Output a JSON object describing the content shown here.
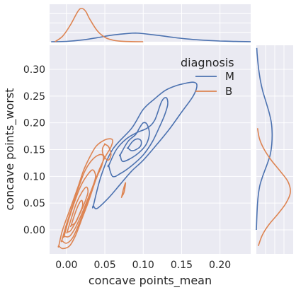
{
  "chart_data": {
    "type": "kde-jointplot",
    "xlabel": "concave points_mean",
    "ylabel": "concave points_worst",
    "xlim": [
      -0.022,
      0.24
    ],
    "ylim": [
      -0.045,
      0.345
    ],
    "x_ticks": [
      0.0,
      0.05,
      0.1,
      0.15,
      0.2
    ],
    "x_tick_labels": [
      "0.00",
      "0.05",
      "0.10",
      "0.15",
      "0.20"
    ],
    "y_ticks": [
      0.0,
      0.05,
      0.1,
      0.15,
      0.2,
      0.25,
      0.3
    ],
    "y_tick_labels": [
      "0.00",
      "0.05",
      "0.10",
      "0.15",
      "0.20",
      "0.25",
      "0.30"
    ],
    "grid": true,
    "legend": {
      "title": "diagnosis",
      "placement": "top-right",
      "entries": [
        {
          "label": "M",
          "color": "#4c72b0"
        },
        {
          "label": "B",
          "color": "#dd8452"
        }
      ]
    },
    "series": [
      {
        "name": "M",
        "color": "#4c72b0",
        "contours": [
          [
            [
              0.035,
              0.045
            ],
            [
              0.045,
              0.1
            ],
            [
              0.06,
              0.15
            ],
            [
              0.085,
              0.19
            ],
            [
              0.1,
              0.225
            ],
            [
              0.115,
              0.245
            ],
            [
              0.128,
              0.26
            ],
            [
              0.14,
              0.268
            ],
            [
              0.152,
              0.273
            ],
            [
              0.165,
              0.276
            ],
            [
              0.17,
              0.27
            ],
            [
              0.165,
              0.25
            ],
            [
              0.15,
              0.22
            ],
            [
              0.135,
              0.19
            ],
            [
              0.118,
              0.16
            ],
            [
              0.1,
              0.13
            ],
            [
              0.085,
              0.11
            ],
            [
              0.07,
              0.085
            ],
            [
              0.055,
              0.06
            ],
            [
              0.04,
              0.04
            ],
            [
              0.035,
              0.045
            ]
          ],
          [
            [
              0.055,
              0.12
            ],
            [
              0.065,
              0.15
            ],
            [
              0.078,
              0.17
            ],
            [
              0.092,
              0.182
            ],
            [
              0.105,
              0.19
            ],
            [
              0.115,
              0.205
            ],
            [
              0.124,
              0.24
            ],
            [
              0.13,
              0.247
            ],
            [
              0.132,
              0.235
            ],
            [
              0.128,
              0.215
            ],
            [
              0.122,
              0.195
            ],
            [
              0.112,
              0.165
            ],
            [
              0.1,
              0.14
            ],
            [
              0.085,
              0.12
            ],
            [
              0.07,
              0.105
            ],
            [
              0.06,
              0.1
            ],
            [
              0.055,
              0.12
            ]
          ],
          [
            [
              0.07,
              0.14
            ],
            [
              0.08,
              0.165
            ],
            [
              0.09,
              0.178
            ],
            [
              0.095,
              0.19
            ],
            [
              0.1,
              0.2
            ],
            [
              0.105,
              0.197
            ],
            [
              0.108,
              0.18
            ],
            [
              0.104,
              0.16
            ],
            [
              0.095,
              0.145
            ],
            [
              0.083,
              0.133
            ],
            [
              0.073,
              0.128
            ],
            [
              0.07,
              0.14
            ]
          ],
          [
            [
              0.08,
              0.153
            ],
            [
              0.086,
              0.165
            ],
            [
              0.092,
              0.17
            ],
            [
              0.097,
              0.167
            ],
            [
              0.097,
              0.158
            ],
            [
              0.092,
              0.151
            ],
            [
              0.085,
              0.148
            ],
            [
              0.08,
              0.153
            ]
          ]
        ]
      },
      {
        "name": "B",
        "color": "#dd8452",
        "contours": [
          [
            [
              -0.01,
              -0.03
            ],
            [
              -0.005,
              0.0
            ],
            [
              0.005,
              0.04
            ],
            [
              0.015,
              0.08
            ],
            [
              0.022,
              0.11
            ],
            [
              0.03,
              0.135
            ],
            [
              0.038,
              0.155
            ],
            [
              0.046,
              0.165
            ],
            [
              0.054,
              0.17
            ],
            [
              0.06,
              0.168
            ],
            [
              0.058,
              0.155
            ],
            [
              0.05,
              0.135
            ],
            [
              0.042,
              0.11
            ],
            [
              0.035,
              0.08
            ],
            [
              0.028,
              0.05
            ],
            [
              0.02,
              0.02
            ],
            [
              0.012,
              -0.01
            ],
            [
              0.004,
              -0.03
            ],
            [
              -0.005,
              -0.035
            ],
            [
              -0.01,
              -0.03
            ]
          ],
          [
            [
              -0.006,
              -0.02
            ],
            [
              0.0,
              0.01
            ],
            [
              0.008,
              0.045
            ],
            [
              0.016,
              0.08
            ],
            [
              0.024,
              0.11
            ],
            [
              0.033,
              0.13
            ],
            [
              0.042,
              0.14
            ],
            [
              0.048,
              0.138
            ],
            [
              0.046,
              0.12
            ],
            [
              0.04,
              0.1
            ],
            [
              0.032,
              0.07
            ],
            [
              0.024,
              0.04
            ],
            [
              0.016,
              0.01
            ],
            [
              0.008,
              -0.015
            ],
            [
              0.0,
              -0.025
            ],
            [
              -0.006,
              -0.02
            ]
          ],
          [
            [
              -0.003,
              -0.012
            ],
            [
              0.002,
              0.015
            ],
            [
              0.01,
              0.05
            ],
            [
              0.018,
              0.08
            ],
            [
              0.026,
              0.1
            ],
            [
              0.034,
              0.112
            ],
            [
              0.038,
              0.1
            ],
            [
              0.034,
              0.08
            ],
            [
              0.027,
              0.055
            ],
            [
              0.02,
              0.03
            ],
            [
              0.012,
              0.005
            ],
            [
              0.004,
              -0.012
            ],
            [
              -0.003,
              -0.012
            ]
          ],
          [
            [
              0.001,
              -0.004
            ],
            [
              0.006,
              0.02
            ],
            [
              0.013,
              0.05
            ],
            [
              0.02,
              0.07
            ],
            [
              0.026,
              0.08
            ],
            [
              0.028,
              0.07
            ],
            [
              0.024,
              0.052
            ],
            [
              0.018,
              0.032
            ],
            [
              0.011,
              0.012
            ],
            [
              0.005,
              -0.002
            ],
            [
              0.001,
              -0.004
            ]
          ],
          [
            [
              0.006,
              0.008
            ],
            [
              0.011,
              0.03
            ],
            [
              0.016,
              0.048
            ],
            [
              0.02,
              0.055
            ],
            [
              0.021,
              0.045
            ],
            [
              0.017,
              0.03
            ],
            [
              0.012,
              0.014
            ],
            [
              0.006,
              0.008
            ]
          ],
          [
            [
              0.05,
              0.16
            ],
            [
              0.055,
              0.155
            ],
            [
              0.058,
              0.14
            ],
            [
              0.054,
              0.13
            ],
            [
              0.048,
              0.14
            ],
            [
              0.047,
              0.152
            ],
            [
              0.05,
              0.16
            ]
          ],
          [
            [
              0.072,
              0.062
            ],
            [
              0.074,
              0.075
            ],
            [
              0.077,
              0.088
            ],
            [
              0.075,
              0.07
            ],
            [
              0.072,
              0.062
            ]
          ]
        ]
      }
    ],
    "marginal_x": {
      "M": {
        "x": [
          -0.02,
          0.0,
          0.02,
          0.04,
          0.06,
          0.08,
          0.09,
          0.1,
          0.12,
          0.14,
          0.16,
          0.18,
          0.2,
          0.22,
          0.24
        ],
        "density": [
          0.0,
          0.2,
          0.9,
          2.2,
          3.6,
          4.5,
          4.7,
          4.4,
          3.4,
          2.3,
          1.4,
          0.8,
          0.4,
          0.15,
          0.05
        ]
      },
      "B": {
        "x": [
          -0.015,
          -0.005,
          0.005,
          0.015,
          0.02,
          0.025,
          0.03,
          0.04,
          0.05,
          0.06,
          0.07,
          0.08,
          0.1
        ],
        "density": [
          0.0,
          3.0,
          9.0,
          16.5,
          18.0,
          16.5,
          12.5,
          6.0,
          2.4,
          0.9,
          0.3,
          0.1,
          0.0
        ]
      }
    },
    "marginal_y": {
      "M": {
        "y": [
          0.0,
          0.05,
          0.08,
          0.1,
          0.12,
          0.14,
          0.16,
          0.18,
          0.2,
          0.22,
          0.24,
          0.26,
          0.28,
          0.3,
          0.32,
          0.34
        ],
        "density": [
          0.0,
          0.3,
          0.8,
          1.6,
          2.6,
          3.5,
          3.9,
          4.0,
          3.8,
          3.2,
          2.4,
          1.6,
          1.0,
          0.6,
          0.3,
          0.1
        ]
      },
      "B": {
        "y": [
          -0.05,
          -0.03,
          -0.01,
          0.01,
          0.03,
          0.05,
          0.07,
          0.09,
          0.11,
          0.13,
          0.15,
          0.17,
          0.19
        ],
        "density": [
          0.0,
          0.5,
          1.5,
          3.2,
          5.5,
          7.5,
          8.6,
          8.0,
          6.0,
          3.8,
          2.0,
          0.8,
          0.3
        ]
      }
    }
  }
}
